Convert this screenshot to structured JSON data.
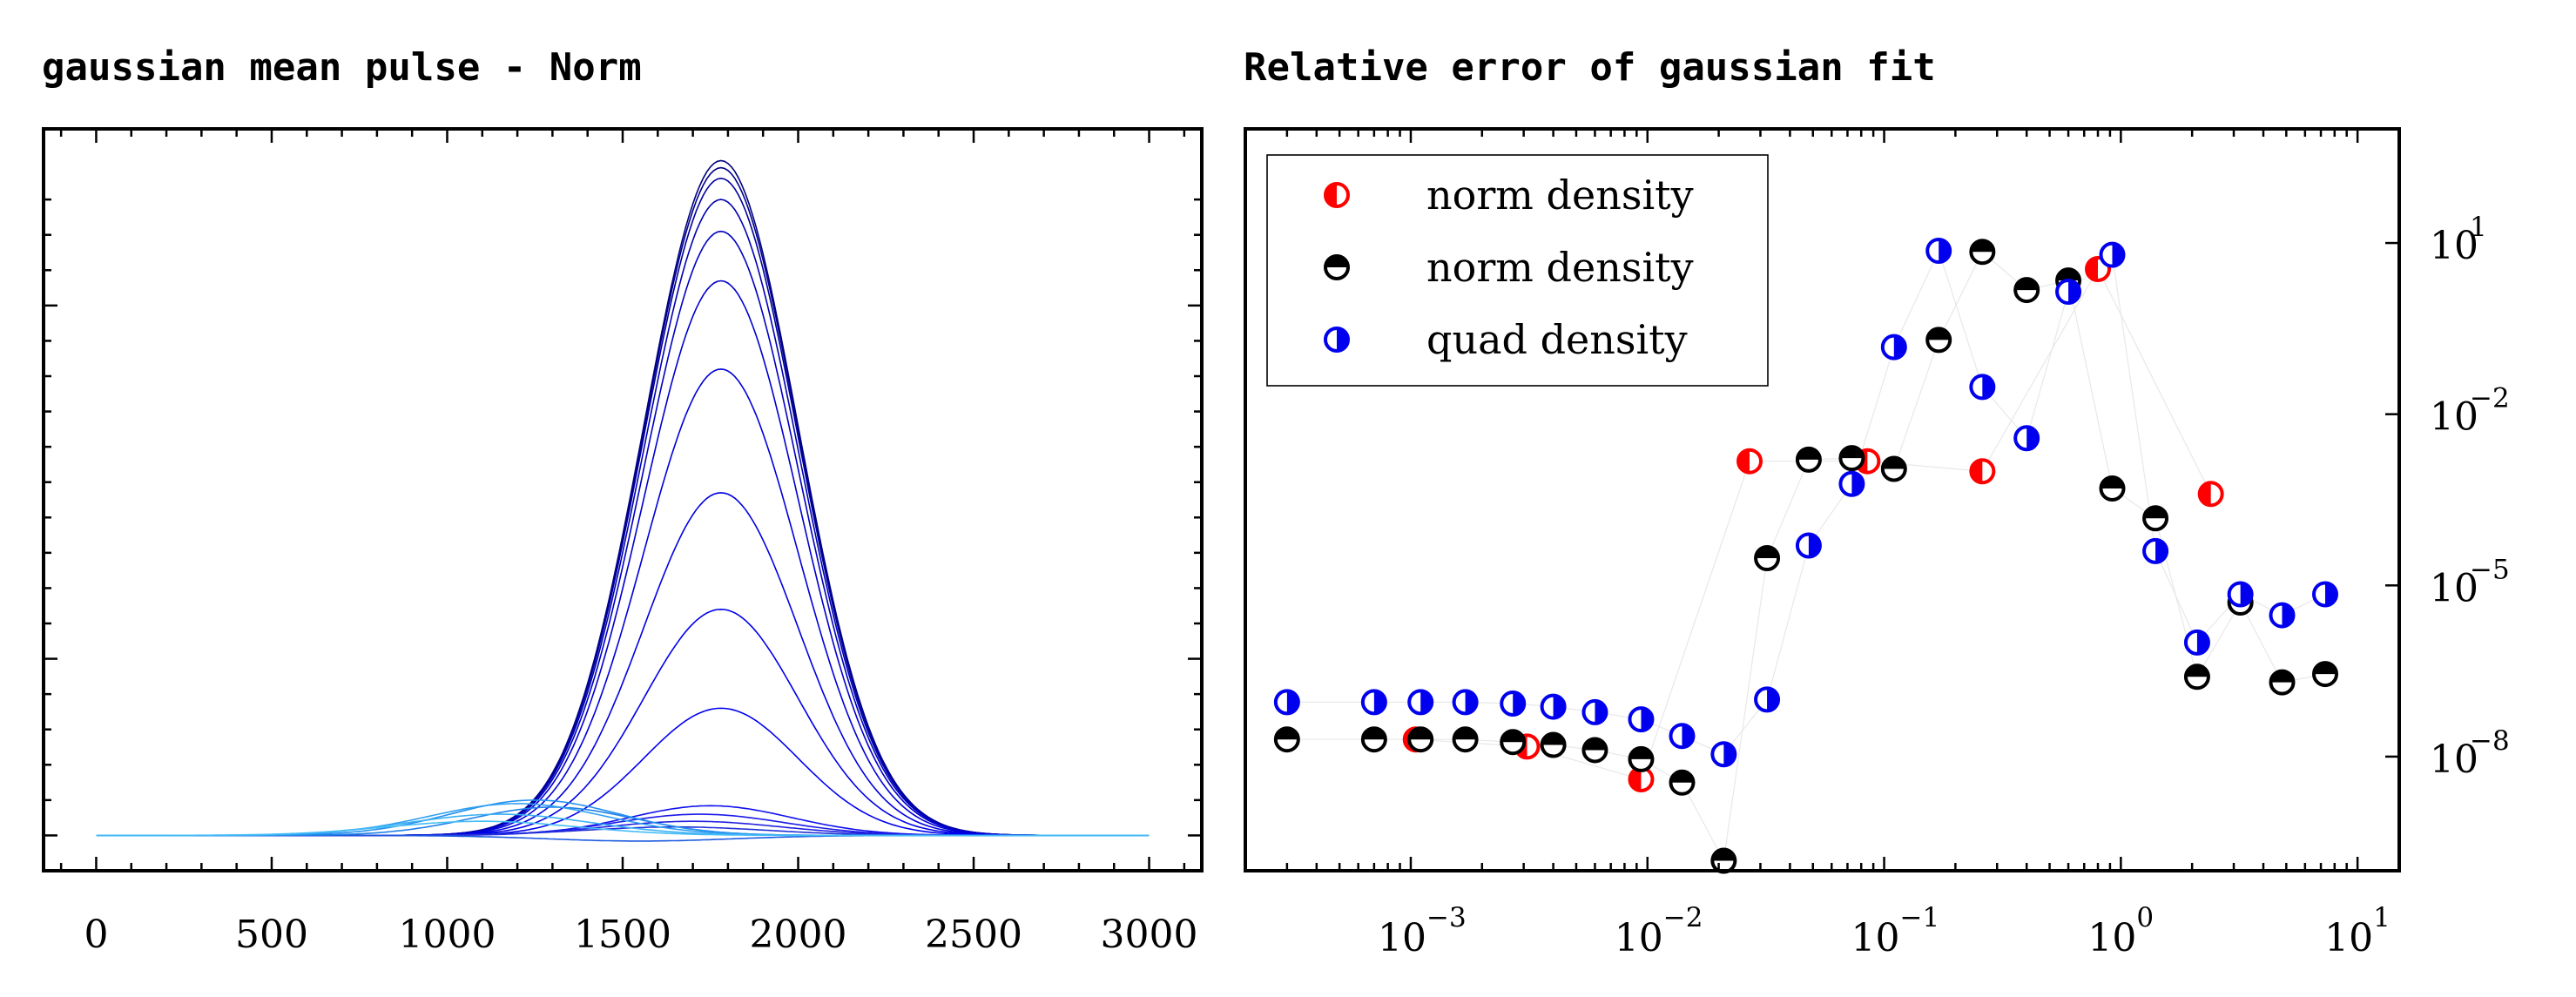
{
  "chart_data": [
    {
      "type": "line",
      "title": "gaussian mean pulse - Norm",
      "xlabel": "",
      "ylabel": "",
      "xlim": [
        -150,
        3150
      ],
      "ylim": [
        -0.05,
        1.0
      ],
      "xticks": [
        0,
        500,
        1000,
        1500,
        2000,
        2500,
        3000
      ],
      "xtick_labels": [
        "0",
        "500",
        "1000",
        "1500",
        "2000",
        "2500",
        "3000"
      ],
      "yticks_labeled": false,
      "grid": false,
      "baseline": 0.0,
      "series": [
        {
          "color": "#000080",
          "center": 1780,
          "sigma": 220,
          "amplitude": 0.955
        },
        {
          "color": "#00008b",
          "center": 1780,
          "sigma": 220,
          "amplitude": 0.945
        },
        {
          "color": "#00009e",
          "center": 1780,
          "sigma": 220,
          "amplitude": 0.93
        },
        {
          "color": "#0000b0",
          "center": 1780,
          "sigma": 220,
          "amplitude": 0.9
        },
        {
          "color": "#0000c0",
          "center": 1780,
          "sigma": 220,
          "amplitude": 0.855
        },
        {
          "color": "#0000cc",
          "center": 1780,
          "sigma": 220,
          "amplitude": 0.785
        },
        {
          "color": "#0000d8",
          "center": 1780,
          "sigma": 220,
          "amplitude": 0.66
        },
        {
          "color": "#0000e0",
          "center": 1780,
          "sigma": 220,
          "amplitude": 0.485
        },
        {
          "color": "#0000e8",
          "center": 1780,
          "sigma": 220,
          "amplitude": 0.32
        },
        {
          "color": "#0000f0",
          "center": 1780,
          "sigma": 220,
          "amplitude": 0.18
        },
        {
          "color": "#1010f0",
          "center": 1750,
          "sigma": 230,
          "amplitude": 0.042
        },
        {
          "color": "#1a1ae8",
          "center": 1720,
          "sigma": 240,
          "amplitude": 0.03
        },
        {
          "color": "#2020e0",
          "center": 1700,
          "sigma": 250,
          "amplitude": 0.02
        },
        {
          "color": "#2030d8",
          "center": 1650,
          "sigma": 260,
          "amplitude": 0.012
        },
        {
          "color": "#1c5ae0",
          "center": 1550,
          "sigma": 260,
          "amplitude": -0.008
        },
        {
          "color": "#2080e8",
          "center": 1300,
          "sigma": 230,
          "amplitude": 0.04
        },
        {
          "color": "#2590ee",
          "center": 1250,
          "sigma": 240,
          "amplitude": 0.05
        },
        {
          "color": "#30a0f0",
          "center": 1200,
          "sigma": 250,
          "amplitude": 0.045
        },
        {
          "color": "#3ab0f4",
          "center": 1150,
          "sigma": 260,
          "amplitude": 0.03
        },
        {
          "color": "#45bcf6",
          "center": 1100,
          "sigma": 270,
          "amplitude": 0.02
        }
      ]
    },
    {
      "type": "scatter",
      "title": "Relative error of gaussian fit",
      "xlabel": "",
      "ylabel": "",
      "xscale": "log",
      "yscale": "log",
      "xlim": [
        0.0002,
        15
      ],
      "ylim": [
        1e-10,
        1000
      ],
      "xticks": [
        0.001,
        0.01,
        0.1,
        1,
        10
      ],
      "xtick_labels": [
        "10",
        "10",
        "10",
        "10",
        "10"
      ],
      "xtick_exponents": [
        "−3",
        "−2",
        "−1",
        "0",
        "1"
      ],
      "yticks": [
        1e-08,
        1e-05,
        0.01,
        10
      ],
      "ytick_labels": [
        "10",
        "10",
        "10",
        "10"
      ],
      "ytick_exponents": [
        "−8",
        "−5",
        "−2",
        "1"
      ],
      "ytick_side": "right",
      "grid": false,
      "legend_position": "top-left",
      "series": [
        {
          "name": "norm density",
          "color": "#ff0000",
          "marker": "half-left",
          "x": [
            0.00105,
            0.0031,
            0.0094,
            0.027,
            0.085,
            0.26,
            0.8,
            2.4
          ],
          "y": [
            2e-08,
            1.5e-08,
            4e-09,
            0.0015,
            0.0015,
            0.001,
            3.5,
            0.0004
          ]
        },
        {
          "name": "norm density",
          "color": "#000000",
          "marker": "half-bottom",
          "x": [
            0.0003,
            0.0007,
            0.0011,
            0.0017,
            0.0027,
            0.004,
            0.006,
            0.0094,
            0.014,
            0.021,
            0.032,
            0.048,
            0.073,
            0.11,
            0.17,
            0.26,
            0.4,
            0.6,
            0.92,
            1.4,
            2.1,
            3.2,
            4.8,
            7.3
          ],
          "y": [
            2e-08,
            2e-08,
            2e-08,
            2e-08,
            1.8e-08,
            1.6e-08,
            1.3e-08,
            9e-09,
            3.5e-09,
            1.5e-10,
            3e-05,
            0.0016,
            0.0017,
            0.0011,
            0.2,
            7,
            1.5,
            2.2,
            0.0005,
            0.00015,
            2.5e-07,
            5e-06,
            2e-07,
            2.8e-07
          ]
        },
        {
          "name": "quad density",
          "color": "#0000ee",
          "marker": "half-right",
          "x": [
            0.0003,
            0.0007,
            0.0011,
            0.0017,
            0.0027,
            0.004,
            0.006,
            0.0094,
            0.014,
            0.021,
            0.032,
            0.048,
            0.073,
            0.11,
            0.17,
            0.26,
            0.4,
            0.6,
            0.92,
            1.4,
            2.1,
            3.2,
            4.8,
            7.3
          ],
          "y": [
            9e-08,
            9e-08,
            9e-08,
            9e-08,
            8.5e-08,
            7.5e-08,
            6e-08,
            4.5e-08,
            2.3e-08,
            1.1e-08,
            1e-07,
            5e-05,
            0.0006,
            0.15,
            7.3,
            0.03,
            0.0038,
            1.4,
            6.2,
            4e-05,
            1e-06,
            7e-06,
            3e-06,
            7e-06
          ]
        }
      ]
    }
  ]
}
